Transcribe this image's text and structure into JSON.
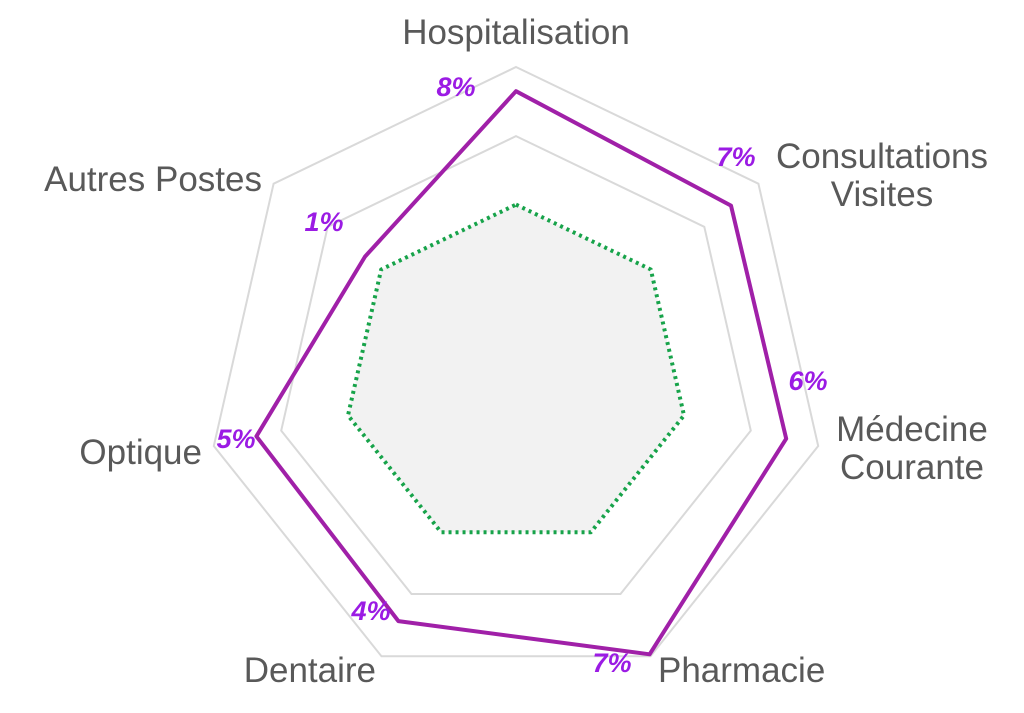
{
  "chart_data": {
    "type": "radar",
    "title": "",
    "categories": [
      [
        "Hospitalisation"
      ],
      [
        "Consultations",
        "Visites"
      ],
      [
        "Médecine",
        "Courante"
      ],
      [
        "Pharmacie"
      ],
      [
        "Dentaire"
      ],
      [
        "Optique"
      ],
      [
        "Autres Postes"
      ]
    ],
    "value_labels": [
      "8%",
      "7%",
      "6%",
      "7%",
      "4%",
      "5%",
      "1%"
    ],
    "series": [
      {
        "style": "solid",
        "color": "#a020a8",
        "values": [
          0.922,
          0.887,
          0.894,
          0.993,
          0.874,
          0.859,
          0.623
        ]
      },
      {
        "style": "dotted",
        "color": "#17a34a",
        "fill": "#f2f2f2",
        "values": [
          0.556,
          0.556,
          0.556,
          0.556,
          0.556,
          0.556,
          0.556
        ]
      }
    ],
    "grid_rings": [
      0.777,
      1.0
    ],
    "grid": true,
    "legend": "none",
    "colors": {
      "grid": "#d9d9d9",
      "value_text": "#9b1be4",
      "label_text": "#595959"
    }
  }
}
